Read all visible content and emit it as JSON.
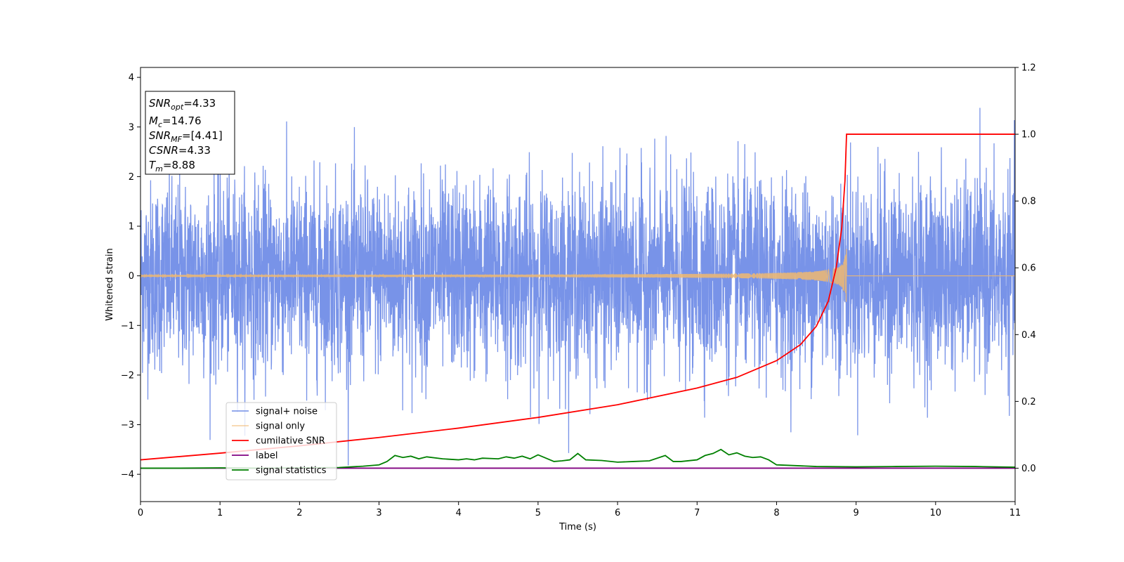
{
  "chart_data": {
    "type": "line",
    "xlabel": "Time (s)",
    "ylabel": "Whitened strain",
    "xlim": [
      0,
      11
    ],
    "ylim": [
      -4.55,
      4.2
    ],
    "y2lim": [
      -0.1,
      1.2
    ],
    "grid": false,
    "legend_position": "lower-left",
    "x_ticks": [
      "0",
      "1",
      "2",
      "3",
      "4",
      "5",
      "6",
      "7",
      "8",
      "9",
      "10",
      "11"
    ],
    "y_ticks": [
      "4",
      "3",
      "2",
      "1",
      "0",
      "−1",
      "−2",
      "−3",
      "−4"
    ],
    "y2_ticks": [
      "1.2",
      "1.0",
      "0.8",
      "0.6",
      "0.4",
      "0.2",
      "0.0"
    ],
    "info_box": [
      {
        "base": "SNR",
        "sub": "opt",
        "value": "=4.33"
      },
      {
        "base": "M",
        "sub": "c",
        "value": "=14.76"
      },
      {
        "base": "SNR",
        "sub": "MF",
        "value": "=[4.41]"
      },
      {
        "base": "CSNR",
        "sub": "",
        "value": "=4.33"
      },
      {
        "base": "T",
        "sub": "m",
        "value": "=8.88"
      }
    ],
    "merger_time": 8.88,
    "series": [
      {
        "name": "signal+ noise",
        "color": "#7893e8",
        "axis": "left",
        "amplitude_range": [
          -4.15,
          3.8
        ]
      },
      {
        "name": "signal only",
        "color": "#f0b870",
        "axis": "left",
        "amplitude_max": 0.65
      },
      {
        "name": "cumilative SNR",
        "color": "#ff0000",
        "axis": "right",
        "x": [
          0,
          1,
          2,
          3,
          4,
          5,
          6,
          7,
          7.5,
          8,
          8.3,
          8.5,
          8.65,
          8.75,
          8.82,
          8.86,
          8.88,
          11
        ],
        "y": [
          0.025,
          0.045,
          0.067,
          0.092,
          0.12,
          0.152,
          0.19,
          0.24,
          0.272,
          0.322,
          0.37,
          0.425,
          0.5,
          0.6,
          0.72,
          0.86,
          1.0,
          1.0
        ]
      },
      {
        "name": "label",
        "color": "#800080",
        "axis": "right",
        "x": [
          0,
          11
        ],
        "y": [
          0.0,
          0.0
        ]
      },
      {
        "name": "signal statistics",
        "color": "#008000",
        "axis": "right",
        "x": [
          0,
          0.5,
          1,
          1.5,
          2,
          2.5,
          2.8,
          3.0,
          3.1,
          3.2,
          3.3,
          3.4,
          3.5,
          3.6,
          3.8,
          4.0,
          4.1,
          4.2,
          4.3,
          4.5,
          4.6,
          4.7,
          4.8,
          4.9,
          5.0,
          5.1,
          5.2,
          5.3,
          5.4,
          5.5,
          5.6,
          5.8,
          6.0,
          6.2,
          6.4,
          6.6,
          6.7,
          6.8,
          7.0,
          7.1,
          7.2,
          7.3,
          7.4,
          7.5,
          7.6,
          7.7,
          7.8,
          7.9,
          8.0,
          8.5,
          9.0,
          9.5,
          10.0,
          10.5,
          11
        ],
        "y": [
          0.0,
          0.0,
          0.001,
          0.0,
          0.001,
          0.002,
          0.006,
          0.01,
          0.02,
          0.038,
          0.032,
          0.036,
          0.028,
          0.034,
          0.028,
          0.025,
          0.028,
          0.025,
          0.03,
          0.028,
          0.034,
          0.03,
          0.036,
          0.028,
          0.04,
          0.03,
          0.02,
          0.022,
          0.025,
          0.044,
          0.025,
          0.023,
          0.018,
          0.02,
          0.022,
          0.038,
          0.02,
          0.02,
          0.025,
          0.038,
          0.044,
          0.056,
          0.04,
          0.046,
          0.036,
          0.032,
          0.034,
          0.025,
          0.01,
          0.005,
          0.004,
          0.005,
          0.006,
          0.005,
          0.003
        ]
      }
    ]
  }
}
